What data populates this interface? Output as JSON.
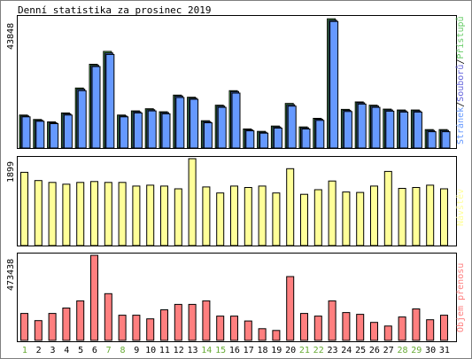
{
  "title": "Denní statistika za prosinec 2019",
  "colors": {
    "pages": "#6666dd",
    "files": "#6699ff",
    "hits": "#66cc66",
    "visits": "#ffff99",
    "bytes": "#ff7f7f",
    "weekend": "#66aa33",
    "weekday": "#000000",
    "frame": "#000000"
  },
  "chart_data": [
    {
      "type": "bar",
      "name": "Přístupů / Souborů / Stránek",
      "ymax_label": "43848",
      "ylim": [
        0,
        43848
      ],
      "legend": [
        "Stránek",
        "/",
        "Souborů",
        "/",
        "Přístupů"
      ],
      "legend_colors": [
        "#6699ff",
        "#000000",
        "#6666dd",
        "#000000",
        "#66cc66"
      ],
      "categories": [
        "1",
        "2",
        "3",
        "4",
        "5",
        "6",
        "7",
        "8",
        "9",
        "10",
        "11",
        "12",
        "13",
        "14",
        "15",
        "16",
        "17",
        "18",
        "19",
        "20",
        "21",
        "22",
        "23",
        "24",
        "25",
        "26",
        "27",
        "28",
        "29",
        "30",
        "31"
      ],
      "series": [
        {
          "name": "Přístupů",
          "values": [
            11100,
            9600,
            8800,
            11800,
            20200,
            28200,
            32500,
            11100,
            12500,
            13200,
            12200,
            17800,
            17100,
            9200,
            14400,
            19300,
            6400,
            5600,
            7400,
            15000,
            7100,
            10000,
            43500,
            13000,
            15500,
            14400,
            13100,
            12800,
            12800,
            6200,
            6200
          ]
        },
        {
          "name": "Souborů",
          "values": [
            10800,
            9300,
            8500,
            11500,
            19800,
            27800,
            32000,
            10800,
            12200,
            12900,
            11900,
            17500,
            16800,
            8900,
            14100,
            19000,
            6100,
            5300,
            7100,
            14600,
            6800,
            9700,
            43000,
            12700,
            15200,
            14100,
            12800,
            12500,
            12500,
            5900,
            5900
          ]
        },
        {
          "name": "Stránek",
          "values": [
            10500,
            9000,
            8200,
            11100,
            19300,
            27400,
            31500,
            10500,
            11800,
            12500,
            11500,
            17000,
            16400,
            8500,
            13700,
            18500,
            5800,
            5000,
            6700,
            14100,
            6400,
            9300,
            42600,
            12300,
            14800,
            13700,
            12400,
            12100,
            12100,
            5500,
            5500
          ]
        }
      ]
    },
    {
      "type": "bar",
      "name": "Návštěv",
      "ymax_label": "1899",
      "ylim": [
        0,
        1899
      ],
      "legend": [
        "Návštěv"
      ],
      "legend_colors": [
        "#ffff99"
      ],
      "categories": [
        "1",
        "2",
        "3",
        "4",
        "5",
        "6",
        "7",
        "8",
        "9",
        "10",
        "11",
        "12",
        "13",
        "14",
        "15",
        "16",
        "17",
        "18",
        "19",
        "20",
        "21",
        "22",
        "23",
        "24",
        "25",
        "26",
        "27",
        "28",
        "29",
        "30",
        "31"
      ],
      "series": [
        {
          "name": "Návštěv",
          "values": [
            1600,
            1420,
            1380,
            1340,
            1380,
            1400,
            1380,
            1380,
            1300,
            1320,
            1300,
            1240,
            1899,
            1280,
            1150,
            1300,
            1270,
            1300,
            1150,
            1680,
            1120,
            1220,
            1410,
            1170,
            1160,
            1300,
            1620,
            1250,
            1270,
            1320,
            1240
          ]
        }
      ]
    },
    {
      "type": "bar",
      "name": "Objem přenosu",
      "ymax_label": "473438",
      "ylim": [
        0,
        473438
      ],
      "legend": [
        "Objem přenosu"
      ],
      "legend_colors": [
        "#ff7f7f"
      ],
      "categories": [
        "1",
        "2",
        "3",
        "4",
        "5",
        "6",
        "7",
        "8",
        "9",
        "10",
        "11",
        "12",
        "13",
        "14",
        "15",
        "16",
        "17",
        "18",
        "19",
        "20",
        "21",
        "22",
        "23",
        "24",
        "25",
        "26",
        "27",
        "28",
        "29",
        "30",
        "31"
      ],
      "series": [
        {
          "name": "Objem přenosu",
          "values": [
            150000,
            110000,
            150000,
            180000,
            220000,
            473438,
            260000,
            140000,
            140000,
            120000,
            170000,
            200000,
            200000,
            220000,
            135000,
            135000,
            108000,
            65000,
            55000,
            355000,
            150000,
            135000,
            220000,
            155000,
            145000,
            100000,
            80000,
            130000,
            175000,
            115000,
            140000
          ]
        }
      ]
    }
  ],
  "x_labels": [
    "1",
    "2",
    "3",
    "4",
    "5",
    "6",
    "7",
    "8",
    "9",
    "10",
    "11",
    "12",
    "13",
    "14",
    "15",
    "16",
    "17",
    "18",
    "19",
    "20",
    "21",
    "22",
    "23",
    "24",
    "25",
    "26",
    "27",
    "28",
    "29",
    "30",
    "31"
  ],
  "weekend_days": [
    1,
    7,
    8,
    14,
    15,
    21,
    22,
    28,
    29
  ]
}
